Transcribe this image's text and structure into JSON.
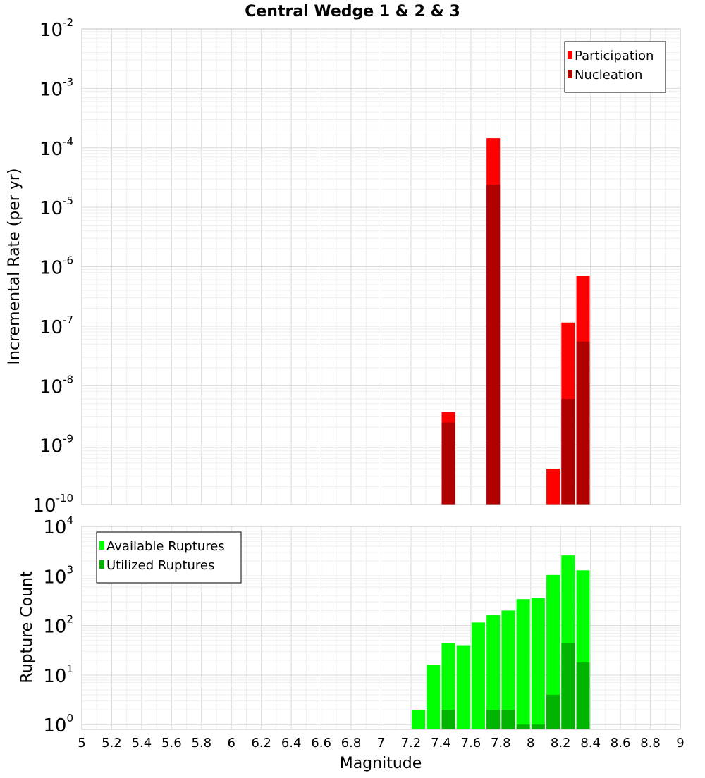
{
  "chart_data": [
    {
      "type": "bar",
      "title": "Central Wedge 1 & 2 & 3",
      "ylabel": "Incremental Rate (per yr)",
      "yscale": "log",
      "ylim": [
        1e-10,
        0.01
      ],
      "ytick_bases": [
        "10",
        "10",
        "10",
        "10",
        "10",
        "10",
        "10",
        "10",
        "10"
      ],
      "ytick_exps": [
        "-10",
        "-9",
        "-8",
        "-7",
        "-6",
        "-5",
        "-4",
        "-3",
        "-2"
      ],
      "xlim": [
        5,
        9
      ],
      "legend_position": "top-right",
      "grid": true,
      "series": [
        {
          "name": "Participation",
          "color": "#ff0000",
          "x": [
            7.45,
            7.75,
            8.15,
            8.25,
            8.35
          ],
          "values": [
            3.6e-09,
            0.000145,
            4e-10,
            1.15e-07,
            7e-07
          ]
        },
        {
          "name": "Nucleation",
          "color": "#b00000",
          "x": [
            7.45,
            7.75,
            8.25,
            8.35
          ],
          "values": [
            2.4e-09,
            2.4e-05,
            6e-09,
            5.5e-08
          ]
        }
      ]
    },
    {
      "type": "bar",
      "xlabel": "Magnitude",
      "ylabel": "Rupture Count",
      "yscale": "log",
      "ylim": [
        0.8,
        10000
      ],
      "ytick_bases": [
        "10",
        "10",
        "10",
        "10",
        "10"
      ],
      "ytick_exps": [
        "0",
        "1",
        "2",
        "3",
        "4"
      ],
      "xlim": [
        5,
        9
      ],
      "xticks": [
        "5",
        "5.2",
        "5.4",
        "5.6",
        "5.8",
        "6",
        "6.2",
        "6.4",
        "6.6",
        "6.8",
        "7",
        "7.2",
        "7.4",
        "7.6",
        "7.8",
        "8",
        "8.2",
        "8.4",
        "8.6",
        "8.8",
        "9"
      ],
      "legend_position": "top-left",
      "grid": true,
      "series": [
        {
          "name": "Available Ruptures",
          "color": "#00ff00",
          "x": [
            7.25,
            7.35,
            7.45,
            7.55,
            7.65,
            7.75,
            7.85,
            7.95,
            8.05,
            8.15,
            8.25,
            8.35
          ],
          "values": [
            2,
            16,
            45,
            40,
            115,
            165,
            200,
            340,
            360,
            1050,
            2600,
            1300
          ]
        },
        {
          "name": "Utilized Ruptures",
          "color": "#00b400",
          "x": [
            7.45,
            7.75,
            7.85,
            7.95,
            8.05,
            8.15,
            8.25,
            8.35
          ],
          "values": [
            2,
            2,
            2,
            1,
            1,
            4,
            45,
            18
          ]
        }
      ]
    }
  ]
}
